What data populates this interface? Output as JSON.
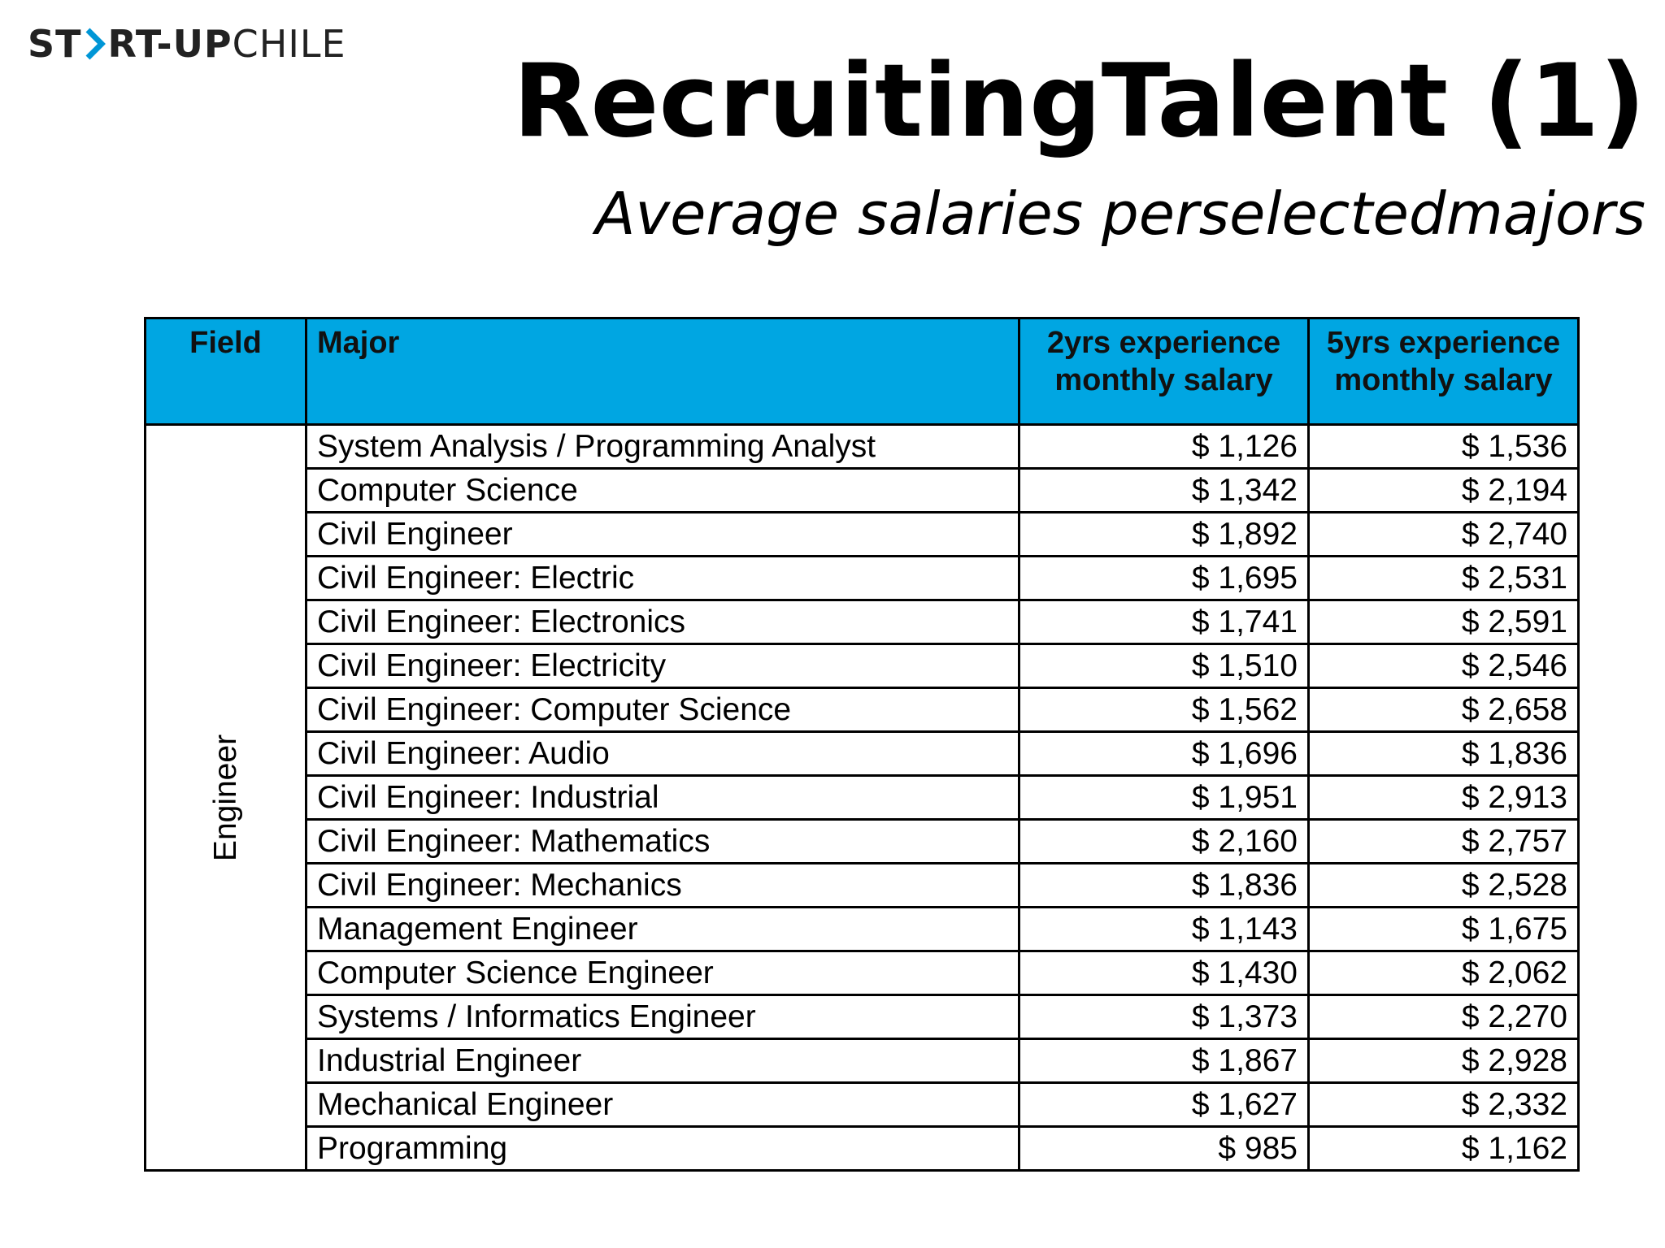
{
  "logo": {
    "part1": "ST",
    "part2": "RT-UP",
    "part3": "CHILE",
    "icon": "chevron-right-icon"
  },
  "title": "RecruitingTalent (1)",
  "subtitle": "Average salaries perselectedmajors",
  "table": {
    "headers": {
      "field": "Field",
      "major": "Major",
      "two_years": "2yrs experience monthly salary",
      "five_years": "5yrs experience monthly salary"
    },
    "field_group": "Engineer",
    "rows": [
      {
        "major": "System Analysis / Programming Analyst",
        "two_years": "$ 1,126",
        "five_years": "$ 1,536"
      },
      {
        "major": "Computer Science",
        "two_years": "$ 1,342",
        "five_years": "$ 2,194"
      },
      {
        "major": "Civil Engineer",
        "two_years": "$ 1,892",
        "five_years": "$ 2,740"
      },
      {
        "major": "Civil Engineer: Electric",
        "two_years": "$ 1,695",
        "five_years": "$ 2,531"
      },
      {
        "major": "Civil Engineer: Electronics",
        "two_years": "$ 1,741",
        "five_years": "$ 2,591"
      },
      {
        "major": "Civil Engineer: Electricity",
        "two_years": "$ 1,510",
        "five_years": "$ 2,546"
      },
      {
        "major": "Civil Engineer: Computer Science",
        "two_years": "$ 1,562",
        "five_years": "$ 2,658"
      },
      {
        "major": "Civil Engineer: Audio",
        "two_years": "$ 1,696",
        "five_years": "$ 1,836"
      },
      {
        "major": "Civil Engineer: Industrial",
        "two_years": "$ 1,951",
        "five_years": "$ 2,913"
      },
      {
        "major": "Civil Engineer: Mathematics",
        "two_years": "$ 2,160",
        "five_years": "$ 2,757"
      },
      {
        "major": "Civil Engineer: Mechanics",
        "two_years": "$ 1,836",
        "five_years": "$ 2,528"
      },
      {
        "major": "Management Engineer",
        "two_years": "$ 1,143",
        "five_years": "$ 1,675"
      },
      {
        "major": "Computer Science Engineer",
        "two_years": "$ 1,430",
        "five_years": "$ 2,062"
      },
      {
        "major": "Systems / Informatics Engineer",
        "two_years": "$ 1,373",
        "five_years": "$ 2,270"
      },
      {
        "major": "Industrial Engineer",
        "two_years": "$ 1,867",
        "five_years": "$ 2,928"
      },
      {
        "major": "Mechanical Engineer",
        "two_years": "$ 1,627",
        "five_years": "$ 2,332"
      },
      {
        "major": "Programming",
        "two_years": "$ 985",
        "five_years": "$ 1,162"
      }
    ]
  },
  "colors": {
    "header_bg": "#00a6e2",
    "text": "#000000"
  }
}
